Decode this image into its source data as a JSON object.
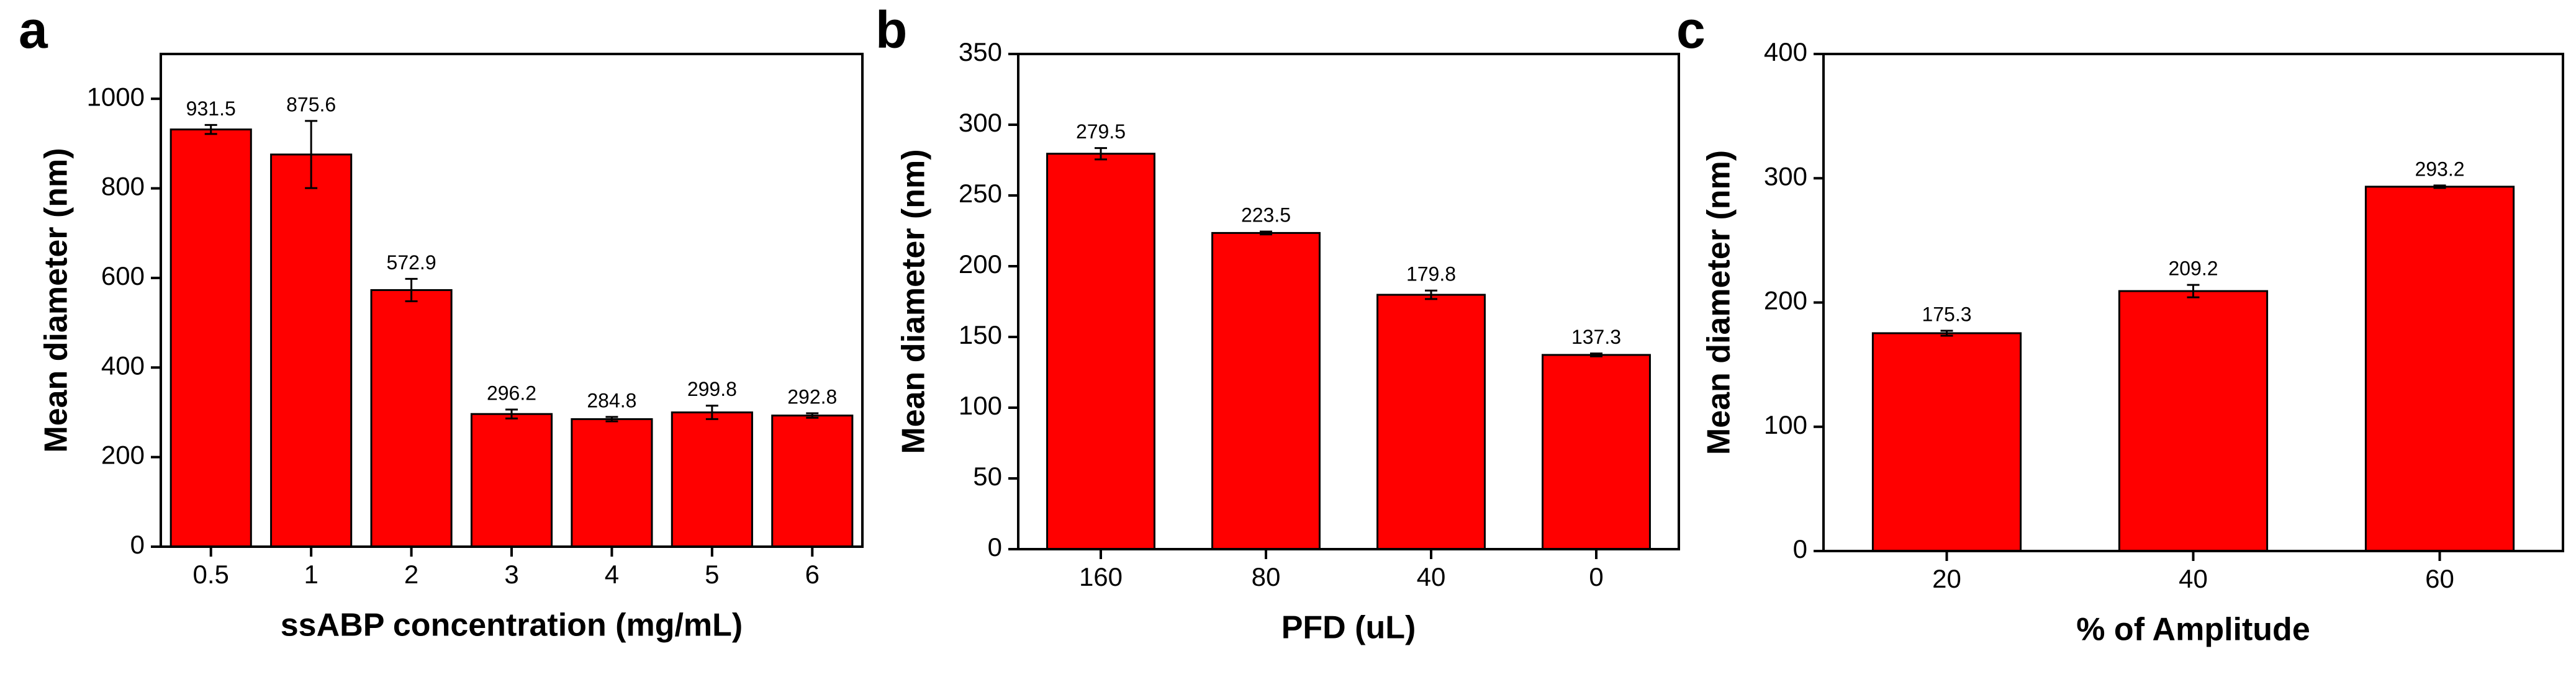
{
  "chart_data": [
    {
      "type": "bar",
      "panel_label": "a",
      "xlabel": "ssABP concentration (mg/mL)",
      "ylabel": "Mean diameter (nm)",
      "categories": [
        "0.5",
        "1",
        "2",
        "3",
        "4",
        "5",
        "6"
      ],
      "values": [
        931.5,
        875.6,
        572.9,
        296.2,
        284.8,
        299.8,
        292.8
      ],
      "errors": [
        10,
        75,
        25,
        10,
        5,
        15,
        5
      ],
      "color": "#ff0000",
      "ylim": [
        0,
        1100
      ],
      "yticks": [
        0,
        200,
        400,
        600,
        800,
        1000
      ]
    },
    {
      "type": "bar",
      "panel_label": "b",
      "xlabel": "PFD (uL)",
      "ylabel": "Mean diameter (nm)",
      "categories": [
        "160",
        "80",
        "40",
        "0"
      ],
      "values": [
        279.5,
        223.5,
        179.8,
        137.3
      ],
      "errors": [
        4,
        1,
        3,
        1
      ],
      "color": "#ff0000",
      "ylim": [
        0,
        350
      ],
      "yticks": [
        0,
        50,
        100,
        150,
        200,
        250,
        300,
        350
      ]
    },
    {
      "type": "bar",
      "panel_label": "c",
      "xlabel": "% of Amplitude",
      "ylabel": "Mean diameter (nm)",
      "categories": [
        "20",
        "40",
        "60"
      ],
      "values": [
        175.3,
        209.2,
        293.2
      ],
      "errors": [
        2,
        5,
        1
      ],
      "color": "#ff0000",
      "ylim": [
        0,
        400
      ],
      "yticks": [
        0,
        100,
        200,
        300,
        400
      ]
    }
  ]
}
